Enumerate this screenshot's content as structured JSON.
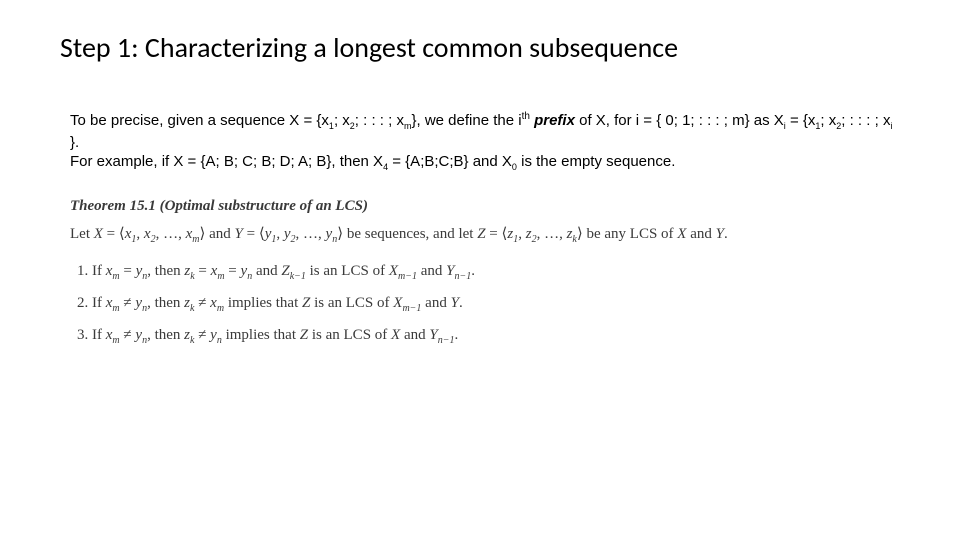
{
  "title": "Step 1: Characterizing a longest common subsequence",
  "body": {
    "p1_a": "To be precise, given a sequence X = {x",
    "p1_b": "; x",
    "p1_c": "; : : : ; x",
    "p1_d": "}, we define the i",
    "p1_e": " ",
    "p1_prefix": "prefix",
    "p1_f": " of X, for i = { 0; 1; : : : ; m} as X",
    "p1_g": " = {x",
    "p1_h": "; x",
    "p1_i": "; : : : ; x",
    "p1_j": " }.",
    "p2_a": "For example, if X = {A; B; C; B; D; A; B}, then X",
    "p2_b": " = {A;B;C;B} and X",
    "p2_c": " is the empty sequence.",
    "sub1": "1",
    "sub2": "2",
    "subm": "m",
    "subi": "i",
    "sub4": "4",
    "sub0": "0",
    "th": "th"
  },
  "theorem": {
    "title": "Theorem 15.1 (Optimal substructure of an LCS)",
    "desc": {
      "a": "Let ",
      "X": "X",
      "eq": " = ",
      "open": "⟨",
      "x1": "x",
      "s1": "1",
      "comma": ", ",
      "x2": "x",
      "s2": "2",
      "dots": ", …, ",
      "xm": "x",
      "sm": "m",
      "close": "⟩",
      "and": " and ",
      "Y": "Y",
      "y1": "y",
      "ys1": "1",
      "y2": "y",
      "ys2": "2",
      "yn": "y",
      "ysn": "n",
      "b": " be sequences, and let ",
      "Z": "Z",
      "z1": "z",
      "zs1": "1",
      "z2": "z",
      "zs2": "2",
      "zk": "z",
      "zsk": "k",
      "c": " be any LCS of ",
      "d": " and ",
      "e": "."
    },
    "items": {
      "i1": {
        "a": "If ",
        "xm": "x",
        "m": "m",
        "eq": " = ",
        "yn": "y",
        "n": "n",
        "b": ", then ",
        "zk": "z",
        "k": "k",
        "eq2": " = ",
        "xm2": "x",
        "m2": "m",
        "eq3": " = ",
        "yn2": "y",
        "n2": "n",
        "c": " and ",
        "Z": "Z",
        "km1": "k−1",
        "d": " is an LCS of ",
        "X": "X",
        "mm1": "m−1",
        "e": " and ",
        "Y": "Y",
        "nm1": "n−1",
        "f": "."
      },
      "i2": {
        "a": "If ",
        "xm": "x",
        "m": "m",
        "ne": " ≠ ",
        "yn": "y",
        "n": "n",
        "b": ", then ",
        "zk": "z",
        "k": "k",
        "ne2": " ≠ ",
        "xm2": "x",
        "m2": "m",
        "c": " implies that ",
        "Z": "Z",
        "d": " is an LCS of ",
        "X": "X",
        "mm1": "m−1",
        "e": " and ",
        "Y": "Y",
        "f": "."
      },
      "i3": {
        "a": "If ",
        "xm": "x",
        "m": "m",
        "ne": " ≠ ",
        "yn": "y",
        "n": "n",
        "b": ", then ",
        "zk": "z",
        "k": "k",
        "ne2": " ≠ ",
        "yn2": "y",
        "n2": "n",
        "c": " implies that ",
        "Z": "Z",
        "d": " is an LCS of ",
        "X": "X",
        "e": " and ",
        "Y": "Y",
        "nm1": "n−1",
        "f": "."
      }
    }
  }
}
